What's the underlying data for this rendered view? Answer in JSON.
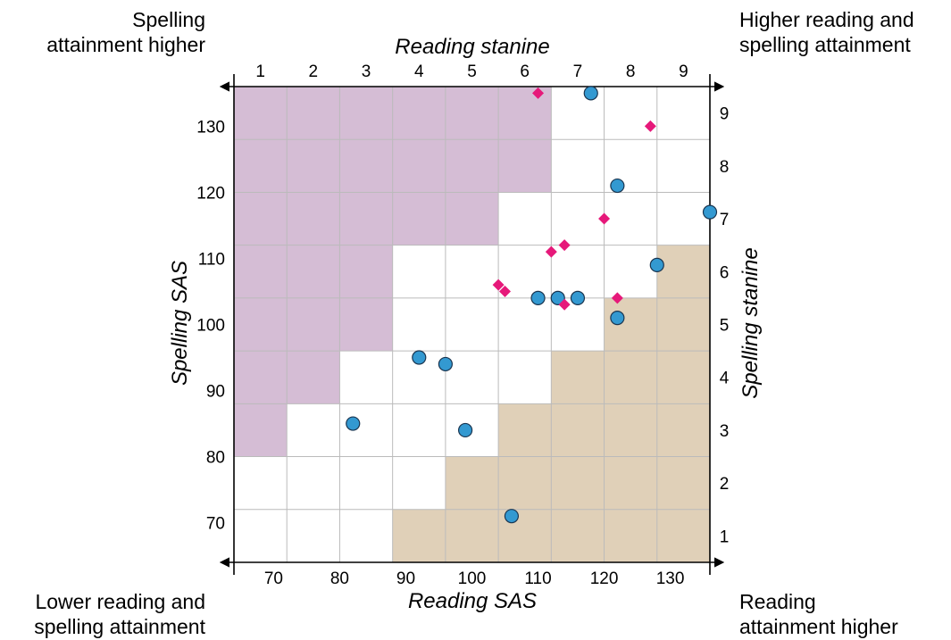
{
  "corners": {
    "top_left": [
      "Spelling",
      "attainment higher"
    ],
    "top_right": [
      "Higher reading and",
      "spelling attainment"
    ],
    "bottom_left": [
      "Lower reading and",
      "spelling attainment"
    ],
    "bottom_right": [
      "Reading",
      "attainment higher"
    ]
  },
  "chart_data": {
    "type": "scatter",
    "title": "",
    "axes": {
      "bottom": {
        "label": "Reading SAS",
        "range": [
          64,
          136
        ],
        "ticks": [
          70,
          80,
          90,
          100,
          110,
          120,
          130
        ]
      },
      "left": {
        "label": "Spelling SAS",
        "range": [
          64,
          136
        ],
        "ticks": [
          70,
          80,
          90,
          100,
          110,
          120,
          130
        ]
      },
      "top": {
        "label": "Reading stanine",
        "ticks": [
          "1",
          "2",
          "3",
          "4",
          "5",
          "6",
          "7",
          "8",
          "9"
        ]
      },
      "right": {
        "label": "Spelling stanine",
        "ticks": [
          "1",
          "2",
          "3",
          "4",
          "5",
          "6",
          "7",
          "8",
          "9"
        ]
      }
    },
    "grid": true,
    "colors": {
      "upper_region": "#d5bdd5",
      "lower_region": "#e0d0b8",
      "circle_marker": "#3399d1",
      "diamond_marker": "#e6197a",
      "gridline": "#bbbbbb"
    },
    "regions": {
      "upper_left_purple": [
        {
          "col": 1,
          "rows": [
            3,
            9
          ]
        },
        {
          "col": 2,
          "rows": [
            4,
            9
          ]
        },
        {
          "col": 3,
          "rows": [
            5,
            9
          ]
        },
        {
          "col": 4,
          "rows": [
            7,
            9
          ]
        },
        {
          "col": 5,
          "rows": [
            7,
            9
          ]
        },
        {
          "col": 6,
          "rows": [
            8,
            9
          ]
        }
      ],
      "lower_right_tan": [
        {
          "col": 4,
          "rows": [
            1,
            1
          ]
        },
        {
          "col": 5,
          "rows": [
            1,
            2
          ]
        },
        {
          "col": 6,
          "rows": [
            1,
            3
          ]
        },
        {
          "col": 7,
          "rows": [
            1,
            4
          ]
        },
        {
          "col": 8,
          "rows": [
            1,
            5
          ]
        },
        {
          "col": 9,
          "rows": [
            1,
            6
          ]
        }
      ]
    },
    "series": [
      {
        "marker": "circle",
        "points": [
          {
            "x": 82,
            "y": 85
          },
          {
            "x": 92,
            "y": 95
          },
          {
            "x": 96,
            "y": 94
          },
          {
            "x": 99,
            "y": 84
          },
          {
            "x": 106,
            "y": 71
          },
          {
            "x": 110,
            "y": 104
          },
          {
            "x": 113,
            "y": 104
          },
          {
            "x": 116,
            "y": 104
          },
          {
            "x": 118,
            "y": 135
          },
          {
            "x": 122,
            "y": 121
          },
          {
            "x": 122,
            "y": 101
          },
          {
            "x": 128,
            "y": 109
          },
          {
            "x": 136,
            "y": 117
          }
        ]
      },
      {
        "marker": "diamond",
        "points": [
          {
            "x": 104,
            "y": 106
          },
          {
            "x": 105,
            "y": 105
          },
          {
            "x": 110,
            "y": 135
          },
          {
            "x": 112,
            "y": 111
          },
          {
            "x": 114,
            "y": 112
          },
          {
            "x": 114,
            "y": 103
          },
          {
            "x": 120,
            "y": 116
          },
          {
            "x": 122,
            "y": 104
          },
          {
            "x": 127,
            "y": 130
          }
        ]
      }
    ]
  }
}
